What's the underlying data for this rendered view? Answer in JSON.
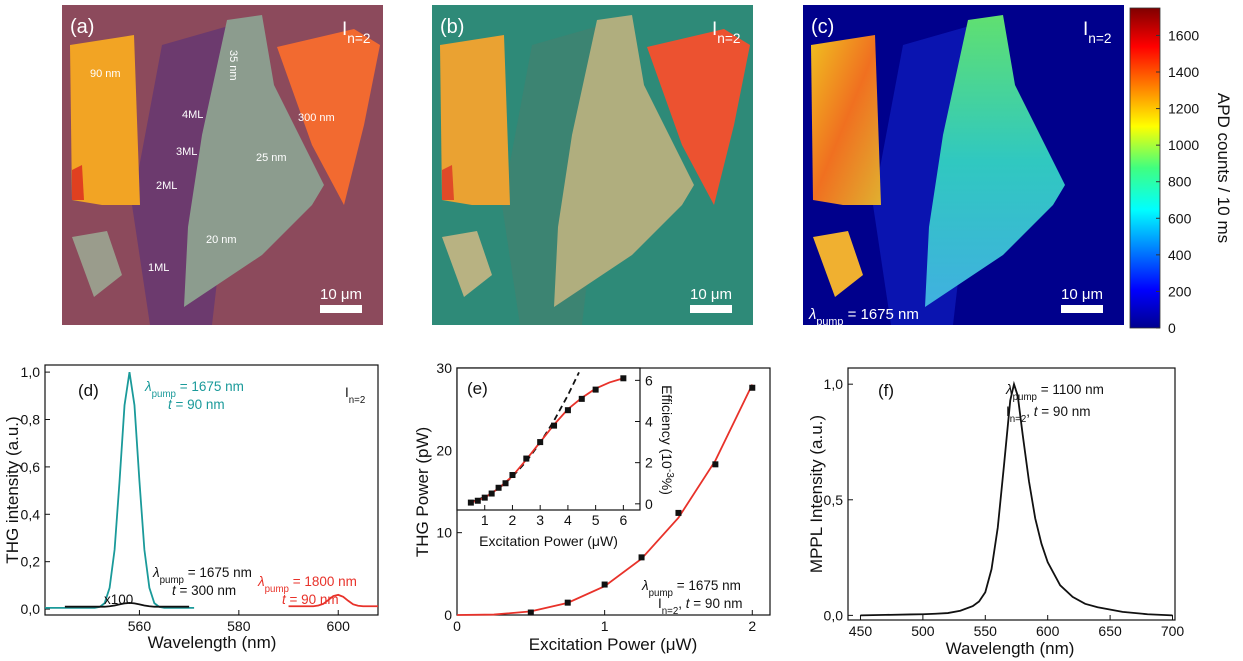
{
  "images": [
    {
      "label": "(a)",
      "mode": [
        {
          "text": "I"
        },
        {
          "text": "n=2",
          "style": "sub"
        }
      ],
      "scale_bar": "10 μm",
      "annotations": [
        "90 nm",
        "35 nm",
        "4ML",
        "3ML",
        "2ML",
        "1ML",
        "20 nm",
        "25 nm",
        "300 nm"
      ]
    },
    {
      "label": "(b)",
      "mode": [
        {
          "text": "I"
        },
        {
          "text": "n=2",
          "style": "sub"
        }
      ],
      "scale_bar": "10 μm"
    },
    {
      "label": "(c)",
      "mode": [
        {
          "text": "I"
        },
        {
          "text": "n=2",
          "style": "sub"
        }
      ],
      "scale_bar": "10 μm",
      "pump": [
        {
          "text": "λ",
          "style": "italic"
        },
        {
          "text": "pump",
          "style": "sub"
        },
        {
          "text": " = 1675 nm"
        }
      ]
    }
  ],
  "colorbar": {
    "label": "APD counts / 10 ms",
    "lim": [
      0,
      1750
    ],
    "ticks": [
      0,
      200,
      400,
      600,
      800,
      1000,
      1200,
      1400,
      1600
    ]
  },
  "chart_data": [
    {
      "type": "line",
      "panel_label": "(d)",
      "x_label": "Wavelength (nm)",
      "y_label": "THG intensity (a.u.)",
      "xlim": [
        541,
        608
      ],
      "xticks": [
        560,
        580,
        600
      ],
      "ylim": [
        -0.025,
        1.03
      ],
      "yticks": [
        {
          "value": 0,
          "label": "0,0"
        },
        {
          "value": 0.2,
          "label": "0,2"
        },
        {
          "value": 0.4,
          "label": "0,4"
        },
        {
          "value": 0.6,
          "label": "0,6"
        },
        {
          "value": 0.8,
          "label": "0,8"
        },
        {
          "value": 1,
          "label": "1,0"
        }
      ],
      "series": [
        {
          "color": "#1a9a9a",
          "style": "line",
          "x": [
            541,
            542,
            543,
            544,
            545,
            546,
            547,
            548,
            549,
            550,
            551,
            552,
            553,
            554,
            555,
            556,
            557,
            558,
            559,
            560,
            561,
            562,
            563,
            564,
            565,
            566,
            567,
            568,
            569,
            570,
            571
          ],
          "values": [
            0.005,
            0.005,
            0.005,
            0.005,
            0.005,
            0.005,
            0.005,
            0.005,
            0.005,
            0.005,
            0.005,
            0.009,
            0.025,
            0.09,
            0.25,
            0.54,
            0.86,
            1.0,
            0.86,
            0.54,
            0.25,
            0.09,
            0.025,
            0.009,
            0.005,
            0.005,
            0.005,
            0.005,
            0.005,
            0.005,
            0.005
          ]
        },
        {
          "color": "#111111",
          "style": "line",
          "x": [
            545,
            546,
            547,
            548,
            549,
            550,
            551,
            552,
            553,
            554,
            555,
            556,
            557,
            558,
            559,
            560,
            561,
            562,
            563,
            564,
            565,
            566,
            567,
            568,
            569,
            570
          ],
          "values": [
            0.01,
            0.01,
            0.01,
            0.01,
            0.01,
            0.01,
            0.01,
            0.01,
            0.01,
            0.012,
            0.015,
            0.02,
            0.024,
            0.026,
            0.024,
            0.02,
            0.015,
            0.012,
            0.01,
            0.01,
            0.01,
            0.01,
            0.01,
            0.01,
            0.01,
            0.01
          ]
        },
        {
          "color": "#e8322a",
          "style": "line",
          "x": [
            590,
            591,
            592,
            593,
            594,
            595,
            596,
            597,
            598,
            599,
            600,
            601,
            602,
            603,
            604,
            605,
            606,
            607,
            608
          ],
          "values": [
            0.012,
            0.012,
            0.012,
            0.012,
            0.012,
            0.012,
            0.015,
            0.022,
            0.038,
            0.055,
            0.06,
            0.052,
            0.035,
            0.02,
            0.014,
            0.012,
            0.012,
            0.012,
            0.012
          ]
        }
      ],
      "annotations": [
        {
          "color": "#1a9a9a",
          "lines": [
            [
              {
                "text": "λ",
                "style": "italic"
              },
              {
                "text": "pump",
                "style": "sub"
              },
              {
                "text": " = 1675 nm"
              }
            ],
            [
              {
                "text": "t",
                "style": "italic"
              },
              {
                "text": " = 90 nm"
              }
            ]
          ]
        },
        {
          "color": "#111111",
          "lines": [
            [
              {
                "text": "λ",
                "style": "italic"
              },
              {
                "text": "pump",
                "style": "sub"
              },
              {
                "text": " = 1675 nm"
              }
            ],
            [
              {
                "text": "t",
                "style": "italic"
              },
              {
                "text": " = 300 nm"
              }
            ]
          ]
        },
        {
          "color": "#e8322a",
          "lines": [
            [
              {
                "text": "λ",
                "style": "italic"
              },
              {
                "text": "pump",
                "style": "sub"
              },
              {
                "text": " = 1800 nm"
              }
            ],
            [
              {
                "text": "t",
                "style": "italic"
              },
              {
                "text": " = 90 nm"
              }
            ]
          ]
        },
        {
          "color": "#111111",
          "lines": [
            [
              {
                "text": "I"
              },
              {
                "text": "n=2",
                "style": "sub"
              }
            ]
          ]
        },
        {
          "color": "#111111",
          "lines": [
            [
              {
                "text": "x100"
              }
            ]
          ]
        }
      ]
    },
    {
      "type": "line",
      "panel_label": "(e)",
      "x_label": "Excitation Power (μW)",
      "y_label": "THG Power (pW)",
      "xlim": [
        0,
        2.12
      ],
      "xticks": [
        0,
        1,
        2
      ],
      "ylim": [
        0,
        30
      ],
      "yticks": [
        0,
        10,
        20,
        30
      ],
      "series": [
        {
          "color": "#e8322a",
          "style": "line",
          "x": [
            0,
            0.25,
            0.5,
            0.75,
            1,
            1.25,
            1.5,
            1.75,
            2
          ],
          "values": [
            0,
            0.055,
            0.4375,
            1.477,
            3.5,
            6.836,
            11.8125,
            18.758,
            28
          ]
        },
        {
          "color": "#111111",
          "style": "markers",
          "x": [
            0.5,
            0.75,
            1,
            1.25,
            1.5,
            1.75,
            2
          ],
          "values": [
            0.3,
            1.5,
            3.7,
            7.0,
            12.4,
            18.3,
            27.6
          ]
        }
      ],
      "inset": {
        "x_label": "Excitation Power (μW)",
        "y_label": [
          {
            "text": "Efficiency (10"
          },
          {
            "text": "-3",
            "style": "sup"
          },
          {
            "text": "%)"
          }
        ],
        "xlim": [
          0,
          6.6
        ],
        "xticks": [
          1,
          2,
          3,
          4,
          5,
          6
        ],
        "ylim": [
          -0.3,
          6.6
        ],
        "yticks": [
          0,
          2,
          4,
          6
        ],
        "series": [
          {
            "color": "#111111",
            "style": "dashed",
            "x": [
              0.5,
              1,
              1.5,
              2,
              2.5,
              3,
              3.5,
              4,
              4.4
            ],
            "values": [
              0.0825,
              0.33,
              0.7425,
              1.32,
              2.0625,
              2.97,
              4.0425,
              5.28,
              6.389
            ]
          },
          {
            "color": "#e8322a",
            "style": "line",
            "x": [
              0.5,
              1,
              1.5,
              2,
              2.5,
              3,
              3.5,
              4,
              4.5,
              5,
              5.5,
              6
            ],
            "values": [
              0.05,
              0.3,
              0.75,
              1.35,
              2.15,
              3.0,
              3.85,
              4.6,
              5.15,
              5.6,
              5.9,
              6.1
            ]
          },
          {
            "color": "#111111",
            "style": "markers",
            "x": [
              0.5,
              0.75,
              1,
              1.25,
              1.5,
              1.75,
              2,
              2.5,
              3,
              3.5,
              4,
              4.5,
              5,
              6
            ],
            "values": [
              0.06,
              0.15,
              0.3,
              0.5,
              0.78,
              1.0,
              1.4,
              2.2,
              3.0,
              3.8,
              4.55,
              5.1,
              5.55,
              6.1
            ]
          }
        ]
      },
      "annotations": [
        {
          "color": "#111111",
          "lines": [
            [
              {
                "text": "λ",
                "style": "italic"
              },
              {
                "text": "pump",
                "style": "sub"
              },
              {
                "text": " = 1675 nm"
              }
            ],
            [
              {
                "text": "I"
              },
              {
                "text": "n=2",
                "style": "sub"
              },
              {
                "text": ", "
              },
              {
                "text": "t",
                "style": "italic"
              },
              {
                "text": " = 90 nm"
              }
            ]
          ]
        }
      ]
    },
    {
      "type": "line",
      "panel_label": "(f)",
      "x_label": "Wavelength (nm)",
      "y_label": "MPPL Intensity (a.u.)",
      "xlim": [
        440,
        702
      ],
      "xticks": [
        450,
        500,
        550,
        600,
        650,
        700
      ],
      "ylim": [
        -0.02,
        1.07
      ],
      "yticks": [
        {
          "value": 0,
          "label": "0,0"
        },
        {
          "value": 0.5,
          "label": "0,5"
        },
        {
          "value": 1,
          "label": "1,0"
        }
      ],
      "series": [
        {
          "color": "#111111",
          "style": "line",
          "x": [
            450,
            470,
            490,
            500,
            510,
            520,
            530,
            540,
            545,
            550,
            555,
            560,
            565,
            570,
            573,
            576,
            580,
            585,
            590,
            595,
            600,
            610,
            620,
            630,
            640,
            660,
            680,
            700
          ],
          "values": [
            0.0,
            0.002,
            0.004,
            0.005,
            0.007,
            0.01,
            0.02,
            0.04,
            0.06,
            0.1,
            0.2,
            0.38,
            0.65,
            0.93,
            1.0,
            0.95,
            0.78,
            0.58,
            0.42,
            0.31,
            0.23,
            0.13,
            0.08,
            0.05,
            0.035,
            0.015,
            0.005,
            0.0
          ]
        }
      ],
      "annotations": [
        {
          "color": "#111111",
          "lines": [
            [
              {
                "text": "λ",
                "style": "italic"
              },
              {
                "text": "pump",
                "style": "sub"
              },
              {
                "text": " = 1100 nm"
              }
            ],
            [
              {
                "text": "I"
              },
              {
                "text": "n=2",
                "style": "sub"
              },
              {
                "text": ", "
              },
              {
                "text": "t",
                "style": "italic"
              },
              {
                "text": " = 90 nm"
              }
            ]
          ]
        }
      ]
    }
  ]
}
